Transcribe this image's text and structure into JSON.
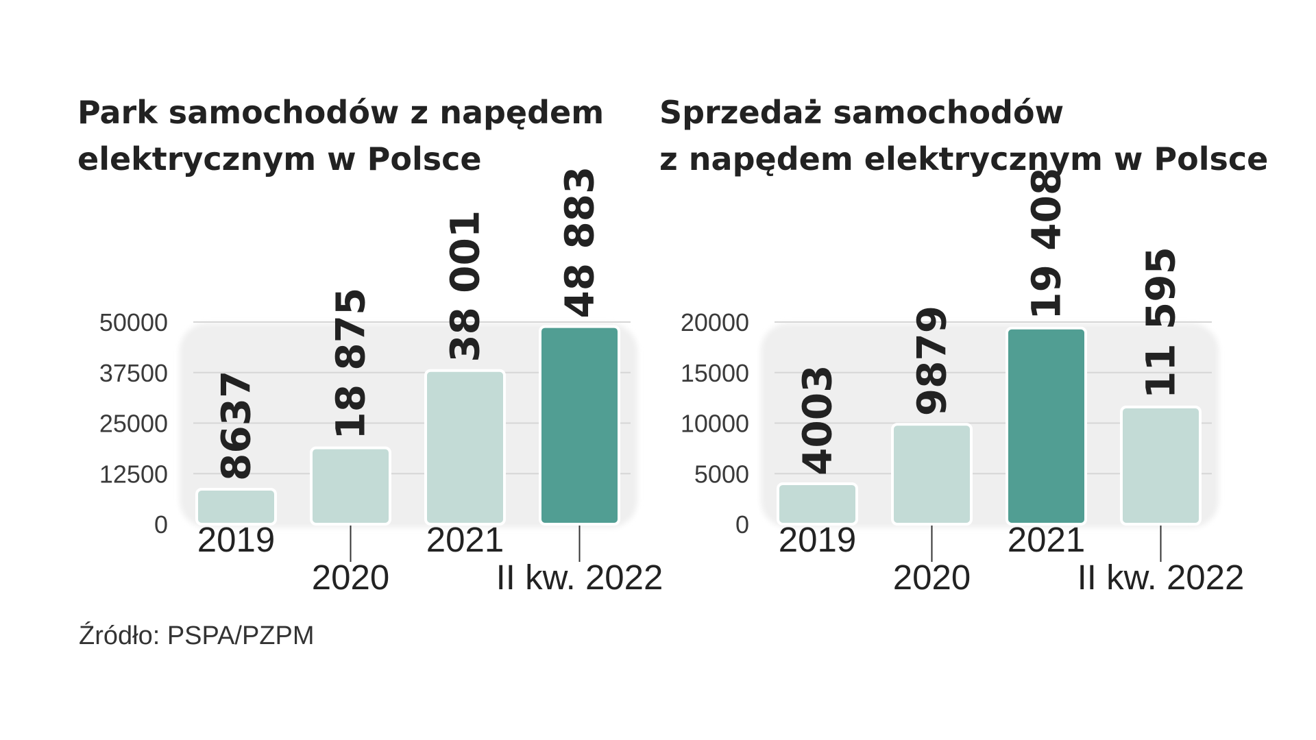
{
  "chart_data": [
    {
      "type": "bar",
      "title_lines": [
        "Park samochodów z napędem",
        "elektrycznym w Polsce"
      ],
      "categories": [
        "2019",
        "2020",
        "2021",
        "II kw. 2022"
      ],
      "values": [
        8637,
        18875,
        38001,
        48883
      ],
      "value_labels": [
        "8637",
        "18 875",
        "38 001",
        "48 883"
      ],
      "yticks": [
        "0",
        "12500",
        "25000",
        "37500",
        "50000"
      ],
      "ylim": [
        0,
        50000
      ],
      "highlight_index": 3,
      "grid": true
    },
    {
      "type": "bar",
      "title_lines": [
        "Sprzedaż samochodów",
        "z napędem elektrycznym w Polsce"
      ],
      "categories": [
        "2019",
        "2020",
        "2021",
        "II kw. 2022"
      ],
      "values": [
        4003,
        9879,
        19408,
        11595
      ],
      "value_labels": [
        "4003",
        "9879",
        "19 408",
        "11 595"
      ],
      "yticks": [
        "0",
        "5000",
        "10000",
        "15000",
        "20000"
      ],
      "ylim": [
        0,
        20000
      ],
      "highlight_index": 2,
      "grid": true
    }
  ],
  "colors": {
    "bar_light": "#c3dbd6",
    "bar_highlight": "#519e93",
    "plot_background": "#efefef",
    "gridline": "#d6d6d6",
    "text": "#222222"
  },
  "source": "Źródło: PSPA/PZPM"
}
